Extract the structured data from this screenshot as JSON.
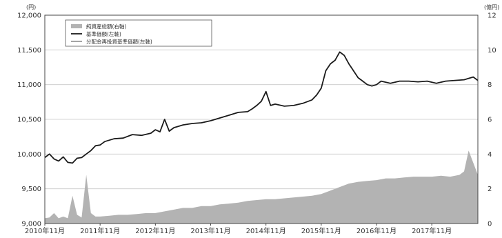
{
  "chart_data": {
    "type": "line",
    "title": "",
    "y_left": {
      "unit": "(円)",
      "ylim": [
        9000,
        12000
      ],
      "ticks": [
        "9,000",
        "9,500",
        "10,000",
        "10,500",
        "11,000",
        "11,500",
        "12,000"
      ]
    },
    "y_right": {
      "unit": "(億円)",
      "ylim": [
        0,
        12
      ],
      "ticks": [
        "0",
        "2",
        "4",
        "6",
        "8",
        "10",
        "12"
      ]
    },
    "x_ticks": [
      "2010年11月",
      "2011年11月",
      "2012年11月",
      "2013年11月",
      "2014年11月",
      "2015年11月",
      "2016年11月",
      "2017年11月"
    ],
    "xlim": [
      "2010-11",
      "2018-09"
    ],
    "grid": true,
    "legend_placement": "top-left",
    "series": [
      {
        "name": "純資産総額(右軸)",
        "axis": "right",
        "style": "area",
        "color": "#b3b3b3",
        "x": [
          "2010-11",
          "2010-12",
          "2011-01",
          "2011-02",
          "2011-03",
          "2011-04",
          "2011-05",
          "2011-06",
          "2011-07",
          "2011-08",
          "2011-09",
          "2011-10",
          "2011-11",
          "2012-01",
          "2012-03",
          "2012-05",
          "2012-07",
          "2012-09",
          "2012-11",
          "2013-01",
          "2013-03",
          "2013-05",
          "2013-07",
          "2013-09",
          "2013-11",
          "2014-01",
          "2014-03",
          "2014-05",
          "2014-07",
          "2014-09",
          "2014-11",
          "2015-01",
          "2015-03",
          "2015-05",
          "2015-07",
          "2015-09",
          "2015-11",
          "2016-01",
          "2016-03",
          "2016-05",
          "2016-07",
          "2016-09",
          "2016-11",
          "2017-01",
          "2017-03",
          "2017-05",
          "2017-07",
          "2017-09",
          "2017-11",
          "2018-01",
          "2018-03",
          "2018-05",
          "2018-06",
          "2018-07",
          "2018-08",
          "2018-09"
        ],
        "values": [
          0.3,
          0.35,
          0.6,
          0.3,
          0.4,
          0.3,
          1.6,
          0.5,
          0.35,
          2.8,
          0.6,
          0.4,
          0.4,
          0.45,
          0.5,
          0.5,
          0.55,
          0.6,
          0.6,
          0.7,
          0.8,
          0.9,
          0.9,
          1.0,
          1.0,
          1.1,
          1.15,
          1.2,
          1.3,
          1.35,
          1.4,
          1.4,
          1.45,
          1.5,
          1.55,
          1.6,
          1.7,
          1.9,
          2.1,
          2.3,
          2.4,
          2.45,
          2.5,
          2.6,
          2.6,
          2.65,
          2.7,
          2.7,
          2.7,
          2.75,
          2.7,
          2.8,
          3.0,
          4.2,
          3.5,
          2.8
        ]
      },
      {
        "name": "基準価額(左軸)",
        "axis": "left",
        "style": "line",
        "color": "#1a1a1a",
        "x": [
          "2010-11",
          "2010-12",
          "2011-01",
          "2011-02",
          "2011-03",
          "2011-04",
          "2011-05",
          "2011-06",
          "2011-07",
          "2011-08",
          "2011-09",
          "2011-10",
          "2011-11",
          "2011-12",
          "2012-02",
          "2012-04",
          "2012-06",
          "2012-08",
          "2012-10",
          "2012-11",
          "2012-12",
          "2013-01",
          "2013-02",
          "2013-03",
          "2013-05",
          "2013-07",
          "2013-09",
          "2013-11",
          "2014-01",
          "2014-03",
          "2014-05",
          "2014-07",
          "2014-08",
          "2014-09",
          "2014-10",
          "2014-11",
          "2014-12",
          "2015-01",
          "2015-03",
          "2015-05",
          "2015-07",
          "2015-09",
          "2015-10",
          "2015-11",
          "2015-12",
          "2016-01",
          "2016-02",
          "2016-03",
          "2016-04",
          "2016-05",
          "2016-06",
          "2016-07",
          "2016-08",
          "2016-09",
          "2016-10",
          "2016-11",
          "2016-12",
          "2017-02",
          "2017-04",
          "2017-06",
          "2017-08",
          "2017-10",
          "2017-12",
          "2018-02",
          "2018-04",
          "2018-06",
          "2018-08",
          "2018-09"
        ],
        "values": [
          9950,
          10000,
          9930,
          9900,
          9960,
          9880,
          9870,
          9940,
          9950,
          10000,
          10050,
          10120,
          10130,
          10180,
          10220,
          10230,
          10280,
          10270,
          10300,
          10350,
          10320,
          10500,
          10330,
          10380,
          10420,
          10440,
          10450,
          10480,
          10520,
          10560,
          10600,
          10610,
          10650,
          10700,
          10760,
          10900,
          10700,
          10720,
          10690,
          10700,
          10730,
          10780,
          10850,
          10950,
          11200,
          11300,
          11350,
          11470,
          11420,
          11300,
          11200,
          11100,
          11050,
          11000,
          10980,
          11000,
          11050,
          11020,
          11050,
          11050,
          11040,
          11050,
          11020,
          11050,
          11060,
          11070,
          11110,
          11060
        ]
      },
      {
        "name": "分配金再投資基準価額(左軸)",
        "axis": "left",
        "style": "line",
        "color": "#9a9a9a",
        "x": [],
        "values": []
      }
    ]
  }
}
